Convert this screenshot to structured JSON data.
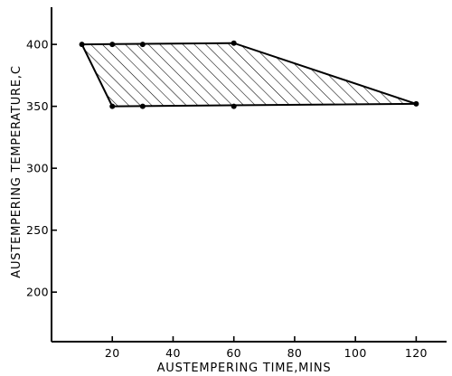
{
  "chart_data": {
    "type": "area",
    "title": "",
    "xlabel": "AUSTEMPERING TIME,MINS",
    "ylabel": "AUSTEMPERING TEMPERATURE,C",
    "xlim": [
      0,
      130
    ],
    "ylim": [
      160,
      430
    ],
    "x_ticks": [
      20,
      40,
      60,
      80,
      100,
      120
    ],
    "y_ticks": [
      200,
      250,
      300,
      350,
      400
    ],
    "fill": "hatched",
    "region_boundary": [
      {
        "x": 10,
        "y": 400
      },
      {
        "x": 60,
        "y": 401
      },
      {
        "x": 120,
        "y": 352
      },
      {
        "x": 20,
        "y": 350
      }
    ],
    "points": [
      {
        "x": 10,
        "y": 400
      },
      {
        "x": 20,
        "y": 400
      },
      {
        "x": 30,
        "y": 400
      },
      {
        "x": 60,
        "y": 401
      },
      {
        "x": 120,
        "y": 352
      },
      {
        "x": 20,
        "y": 350
      },
      {
        "x": 30,
        "y": 350
      },
      {
        "x": 60,
        "y": 350
      }
    ],
    "grid": false,
    "legend": "none"
  }
}
